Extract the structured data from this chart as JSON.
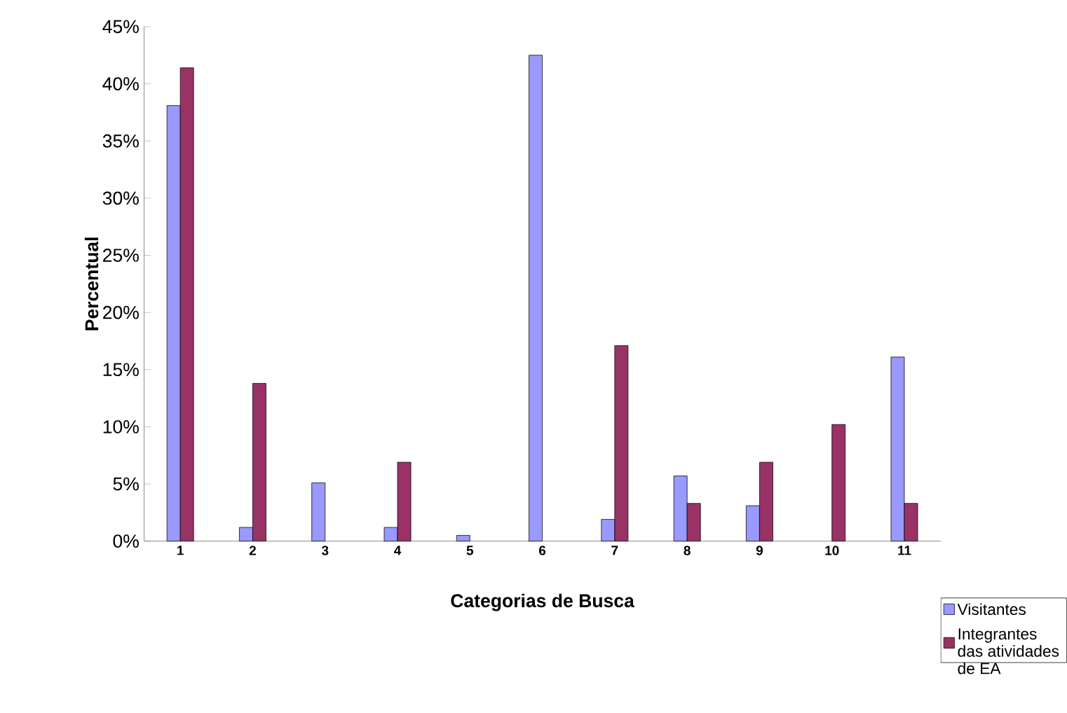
{
  "chart_data": {
    "type": "bar",
    "xlabel": "Categorias de Busca",
    "ylabel": "Percentual",
    "categories": [
      "1",
      "2",
      "3",
      "4",
      "5",
      "6",
      "7",
      "8",
      "9",
      "10",
      "11"
    ],
    "series": [
      {
        "name": "Visitantes",
        "color": "#9999ff",
        "values": [
          38.1,
          1.2,
          5.1,
          1.2,
          0.5,
          42.5,
          1.9,
          5.7,
          3.1,
          null,
          16.1
        ]
      },
      {
        "name": "Integrantes das atividades de EA",
        "color": "#993366",
        "values": [
          41.4,
          13.8,
          null,
          6.9,
          null,
          null,
          17.1,
          3.3,
          6.9,
          10.2,
          3.3
        ]
      }
    ],
    "ylim": [
      0,
      45
    ],
    "yticks": [
      {
        "value": 0,
        "label": "0%"
      },
      {
        "value": 5,
        "label": "5%"
      },
      {
        "value": 10,
        "label": "10%"
      },
      {
        "value": 15,
        "label": "15%"
      },
      {
        "value": 20,
        "label": "20%"
      },
      {
        "value": 25,
        "label": "25%"
      },
      {
        "value": 30,
        "label": "30%"
      },
      {
        "value": 35,
        "label": "35%"
      },
      {
        "value": 40,
        "label": "40%"
      },
      {
        "value": 45,
        "label": "45%"
      }
    ],
    "legend": "bottom right",
    "grid": false
  }
}
